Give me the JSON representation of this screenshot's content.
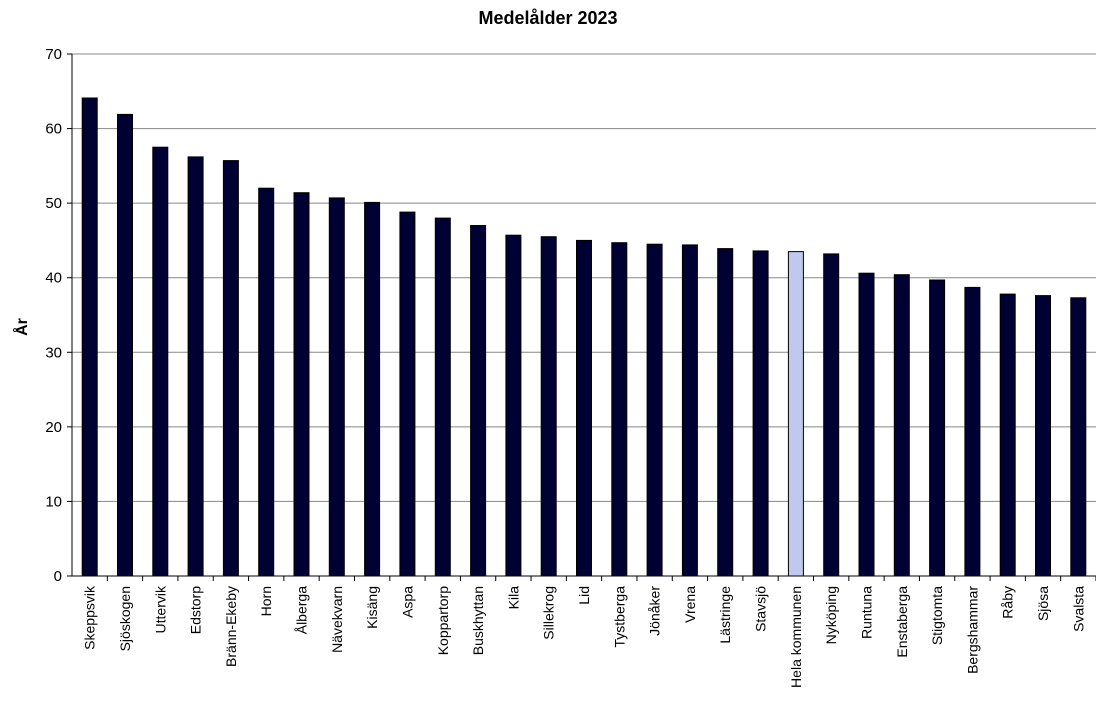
{
  "chart_data": {
    "type": "bar",
    "title": "Medelålder 2023",
    "xlabel": "",
    "ylabel": "År",
    "ylim": [
      0,
      70
    ],
    "yticks": [
      0,
      10,
      20,
      30,
      40,
      50,
      60,
      70
    ],
    "grid": true,
    "legend": "none",
    "categories": [
      "Skeppsvik",
      "Sjöskogen",
      "Uttervik",
      "Edstorp",
      "Bränn-Ekeby",
      "Horn",
      "Ålberga",
      "Nävekvarn",
      "Kisäng",
      "Aspa",
      "Koppartorp",
      "Buskhyttan",
      "Kila",
      "Sillekrog",
      "Lid",
      "Tystberga",
      "Jönåker",
      "Vrena",
      "Lästringe",
      "Stavsjö",
      "Hela kommunen",
      "Nyköping",
      "Runtuna",
      "Enstaberga",
      "Stigtomta",
      "Bergshammar",
      "Råby",
      "Sjösa",
      "Svalsta"
    ],
    "values": [
      64.1,
      61.9,
      57.5,
      56.2,
      55.7,
      52.0,
      51.4,
      50.7,
      50.1,
      48.8,
      48.0,
      47.0,
      45.7,
      45.5,
      45.0,
      44.7,
      44.5,
      44.4,
      43.9,
      43.6,
      43.5,
      43.2,
      40.6,
      40.4,
      39.7,
      38.7,
      37.8,
      37.6,
      37.3
    ],
    "bar_color": "#000033",
    "highlight_color": "#c0c8f0",
    "highlight_category": "Hela kommunen"
  }
}
